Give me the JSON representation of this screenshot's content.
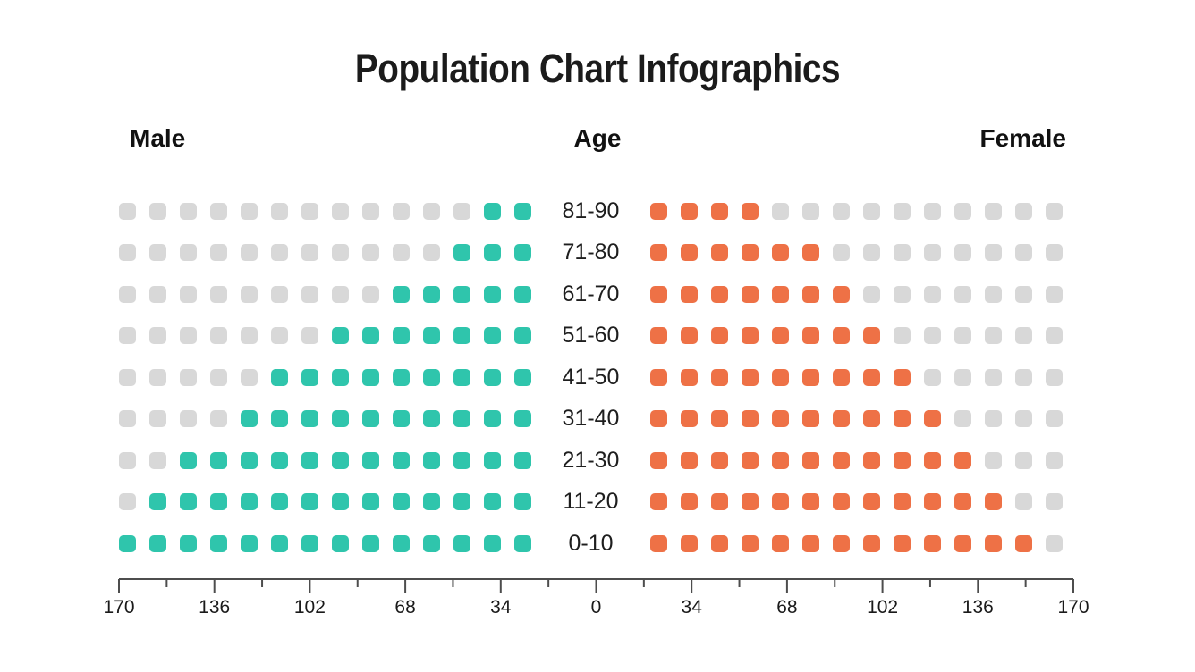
{
  "title": "Population Chart Infographics",
  "headers": {
    "left": "Male",
    "center": "Age",
    "right": "Female"
  },
  "colors": {
    "male": "#2FC5AC",
    "female": "#EE7146",
    "empty": "#D8D8D8",
    "axis": "#4D4D4D",
    "text": "#1A1A1A"
  },
  "chart_data": {
    "type": "bar",
    "subtype": "pictogram-population-pyramid",
    "title": "Population Chart Infographics",
    "squares_per_row": 14,
    "age_groups": [
      "81-90",
      "71-80",
      "61-70",
      "51-60",
      "41-50",
      "31-40",
      "21-30",
      "11-20",
      "0-10"
    ],
    "series": [
      {
        "name": "Male",
        "filled_squares": [
          2,
          3,
          5,
          7,
          9,
          10,
          12,
          13,
          14
        ]
      },
      {
        "name": "Female",
        "filled_squares": [
          4,
          6,
          7,
          8,
          9,
          10,
          11,
          12,
          13
        ]
      }
    ],
    "axis_tick_labels": [
      "170",
      "136",
      "102",
      "68",
      "34",
      "0",
      "34",
      "68",
      "102",
      "136",
      "170"
    ],
    "axis_range_each_side": [
      0,
      170
    ],
    "minor_ticks_between_majors": true,
    "legend_position": "none",
    "grid": false
  }
}
